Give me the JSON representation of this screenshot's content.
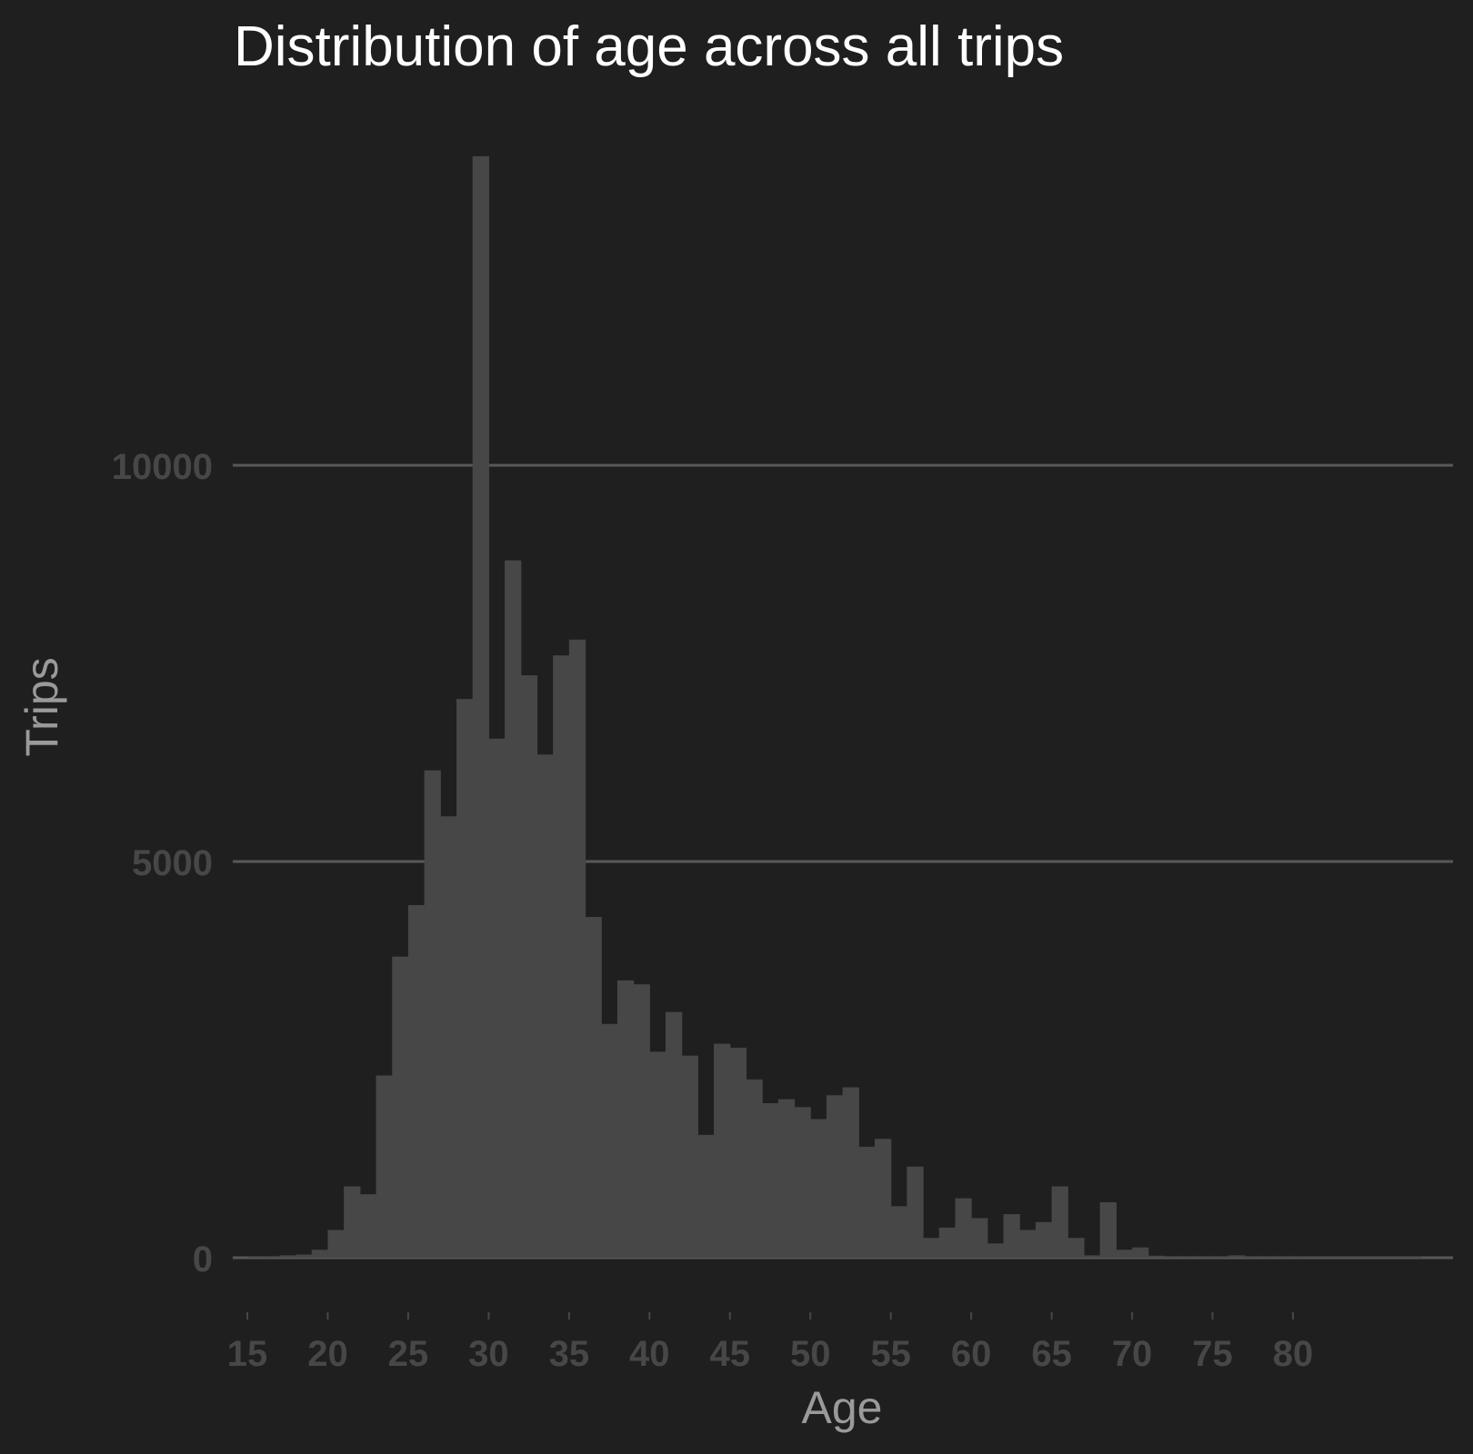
{
  "colors": {
    "background": "#1f1f1f",
    "bar": "#474747",
    "grid": "#585858",
    "title": "#ffffff",
    "axis_title": "#9a9a9a",
    "tick": "#474747"
  },
  "chart_data": {
    "type": "bar",
    "title": "Distribution of age across all trips",
    "xlabel": "Age",
    "ylabel": "Trips",
    "xlim": [
      14,
      90
    ],
    "ylim": [
      -600,
      14500
    ],
    "x_ticks": [
      15,
      20,
      25,
      30,
      35,
      40,
      45,
      50,
      55,
      60,
      65,
      70,
      75,
      80
    ],
    "y_ticks": [
      0,
      5000,
      10000
    ],
    "y_tick_labels": [
      "0",
      "5000",
      "10000"
    ],
    "grid": {
      "horizontal": true,
      "vertical": false
    },
    "legend": "none",
    "bins": {
      "start": 15,
      "width": 1,
      "values": [
        10,
        20,
        30,
        40,
        100,
        350,
        900,
        800,
        2300,
        3800,
        4450,
        6150,
        5570,
        7050,
        13900,
        6550,
        8800,
        7350,
        6350,
        7600,
        7800,
        4300,
        2950,
        3500,
        3450,
        2600,
        3100,
        2550,
        1550,
        2700,
        2650,
        2250,
        1950,
        2000,
        1900,
        1750,
        2050,
        2150,
        1400,
        1500,
        650,
        1150,
        250,
        380,
        750,
        500,
        180,
        550,
        350,
        450,
        900,
        250,
        30,
        700,
        100,
        130,
        25,
        20,
        20,
        20,
        20,
        30,
        20,
        20,
        20,
        20,
        10,
        10,
        10,
        10,
        10,
        10,
        10
      ]
    }
  }
}
